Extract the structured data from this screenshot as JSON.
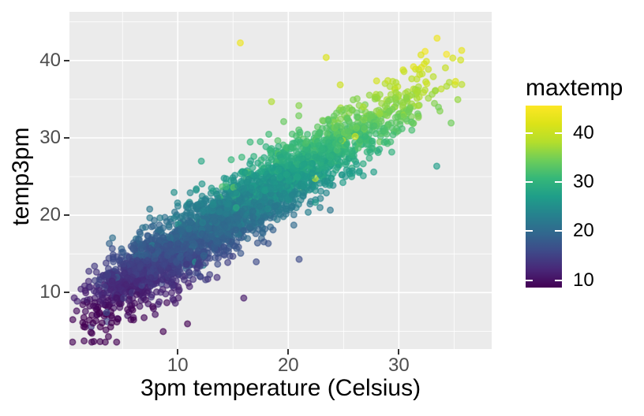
{
  "chart_data": {
    "type": "scatter",
    "title": "",
    "xlabel": "3pm temperature (Celsius)",
    "ylabel": "temp3pm",
    "x_axis": {
      "tick_labels": [
        "10",
        "20",
        "30"
      ],
      "tick_values": [
        10,
        20,
        30
      ],
      "minor_values": [
        5,
        15,
        25,
        35
      ],
      "range": [
        0.2,
        38.4
      ]
    },
    "y_axis": {
      "tick_labels": [
        "10",
        "20",
        "30",
        "40"
      ],
      "tick_values": [
        10,
        20,
        30,
        40
      ],
      "minor_values": [
        5,
        15,
        25,
        35,
        45
      ],
      "range": [
        2.7,
        46.3
      ]
    },
    "legend": {
      "title": "maxtemp",
      "position": "right",
      "type": "colorbar",
      "tick_labels": [
        "10",
        "20",
        "30",
        "40"
      ],
      "tick_values": [
        10,
        20,
        30,
        40
      ],
      "range": [
        8.5,
        45.6
      ]
    },
    "grid": {
      "major": true,
      "minor": true
    },
    "points": {
      "n": 3200,
      "marker": "circle",
      "radius_px": 3.8,
      "fill_alpha": 0.62,
      "stroke_alpha": 0.6,
      "stroke_width": 1.5,
      "seed": 20240613,
      "x_range_observed": [
        0.5,
        37.5
      ],
      "y_range_observed": [
        4,
        45.3
      ],
      "trend": {
        "slope": 0.9,
        "intercept": 6.8,
        "residual_sd": 2.3,
        "outlier_rate": 0.015,
        "outlier_sd": 7
      },
      "x_dist": {
        "type": "beta",
        "a": 2,
        "b": 3,
        "min": 1,
        "max": 37.3,
        "jitter_sd": 0.6
      },
      "color_var": "maxtemp",
      "color_model": {
        "offset": 0.6,
        "halfnormal_sd": 1.5,
        "outlier_rate": 0.02,
        "outlier_max": 10
      }
    },
    "colors": {
      "figure_bg": "#FFFFFF",
      "panel_bg": "#EBEBEB",
      "grid": "#FFFFFF",
      "tick_mark": "#333333",
      "tick_label": "#4D4D4D",
      "title_text": "#000000",
      "viridis": [
        "#440154",
        "#482878",
        "#3E4A89",
        "#31688E",
        "#26828E",
        "#1F9E89",
        "#35B779",
        "#6DCD59",
        "#B4DE2C",
        "#DCE318",
        "#FDE725"
      ]
    }
  }
}
